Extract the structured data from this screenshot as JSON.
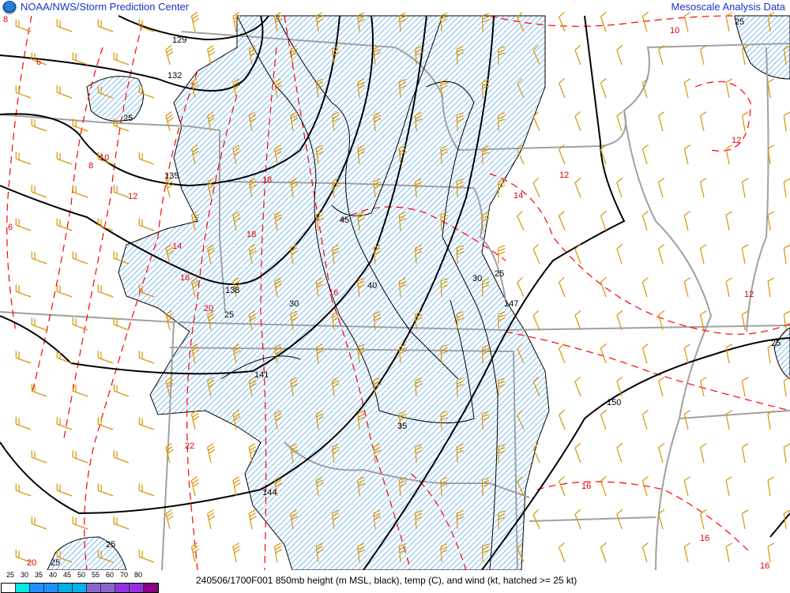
{
  "header": {
    "org_title": "NOAA/NWS/Storm Prediction Center",
    "product_title": "Mesoscale Analysis Data",
    "logo": "noaa-logo"
  },
  "caption": "240506/1700F001 850mb height (m MSL, black), temp (C), and wind (kt, hatched >= 25 kt)",
  "legend": {
    "ticks": [
      "25",
      "30",
      "35",
      "40",
      "45",
      "50",
      "55",
      "60",
      "70",
      "80"
    ],
    "colors": [
      "#ffffff",
      "#00e8e8",
      "#1e90ff",
      "#1e90ff",
      "#00b0e8",
      "#00b0e8",
      "#8866cc",
      "#8866cc",
      "#9030e0",
      "#9030e0",
      "#8b008b"
    ]
  },
  "height_labels": [
    "129",
    "132",
    "135",
    "138",
    "141",
    "144",
    "147",
    "150"
  ],
  "isotach_labels": [
    "25",
    "25",
    "25",
    "30",
    "30",
    "35",
    "40",
    "45",
    "25",
    "25",
    "25",
    "25"
  ],
  "temp_labels": [
    "8",
    "6",
    "6",
    "8",
    "10",
    "12",
    "12",
    "14",
    "16",
    "16",
    "18",
    "20",
    "22",
    "10",
    "12",
    "12",
    "14",
    "16",
    "16",
    "16",
    "18",
    "20"
  ],
  "colors": {
    "height": "#000000",
    "temperature": "#ff0000",
    "wind_barb": "#d89400",
    "hatch": "#3399ff",
    "borders": "#a0a0a0",
    "title_text": "#1a33cc"
  }
}
